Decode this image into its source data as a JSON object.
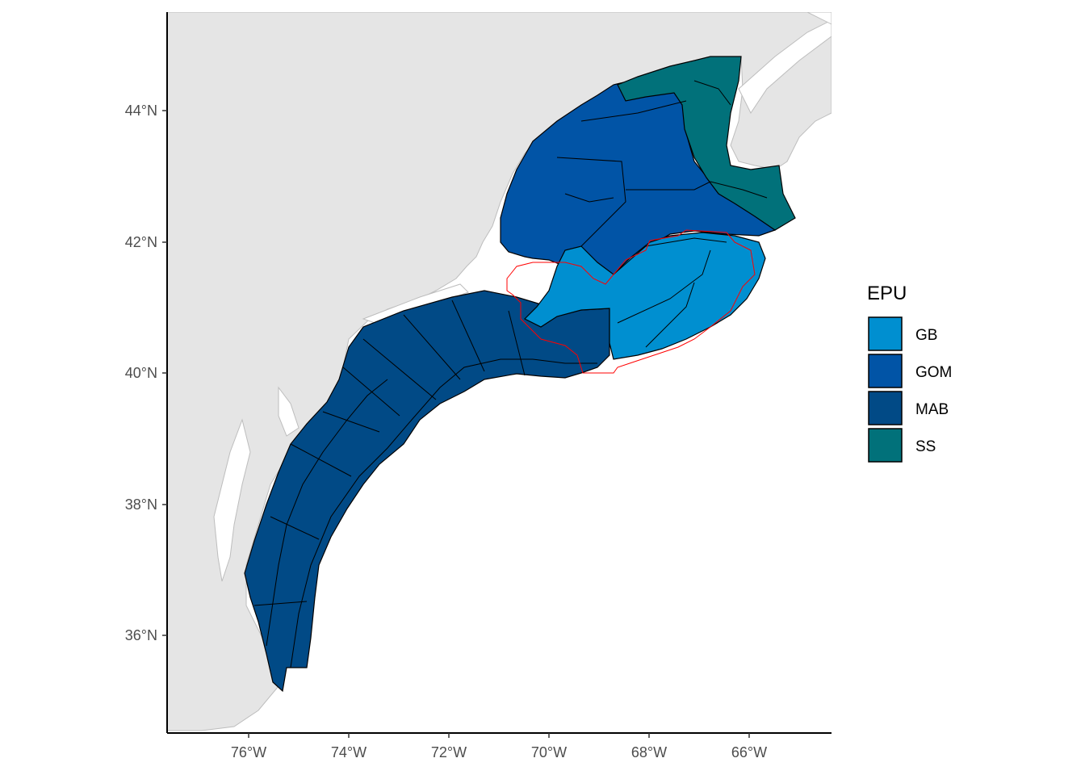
{
  "map": {
    "legend_title": "EPU",
    "legend": [
      {
        "label": "GB",
        "color": "#008FD0"
      },
      {
        "label": "GOM",
        "color": "#0154A6"
      },
      {
        "label": "MAB",
        "color": "#014A86"
      },
      {
        "label": "SS",
        "color": "#01717A"
      }
    ],
    "x_ticks": [
      "76°W",
      "74°W",
      "72°W",
      "70°W",
      "68°W",
      "66°W"
    ],
    "y_ticks": [
      "44°N",
      "42°N",
      "40°N",
      "38°N",
      "36°N"
    ],
    "land_color": "#e5e5e5",
    "outline_color": "#ff0000"
  }
}
